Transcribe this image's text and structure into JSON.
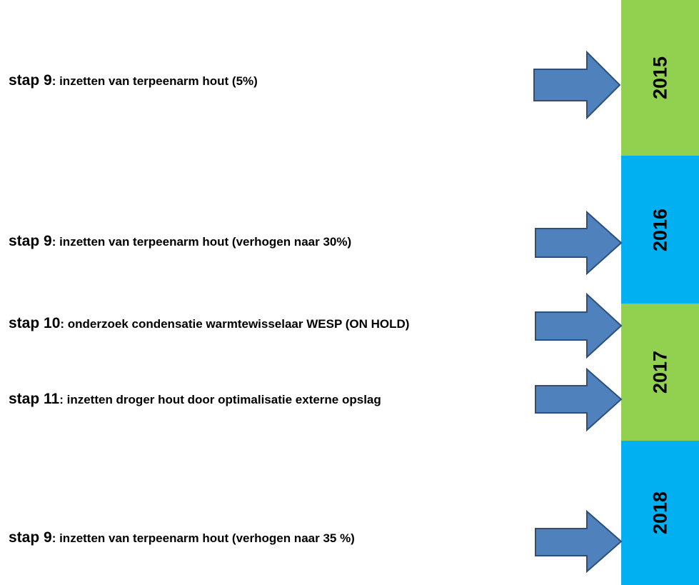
{
  "years": [
    "2015",
    "2016",
    "2017",
    "2018"
  ],
  "steps": [
    {
      "label": "stap 9",
      "text": ": inzetten van terpeenarm hout (5%)"
    },
    {
      "label": "stap 9",
      "text": ": inzetten van terpeenarm hout (verhogen naar 30%)"
    },
    {
      "label": "stap 10",
      "text": ": onderzoek condensatie warmtewisselaar WESP (ON HOLD)"
    },
    {
      "label": "stap 11",
      "text": ": inzetten droger hout door optimalisatie externe opslag"
    },
    {
      "label": "stap 9",
      "text": ": inzetten van terpeenarm hout (verhogen naar 35 %)"
    }
  ]
}
